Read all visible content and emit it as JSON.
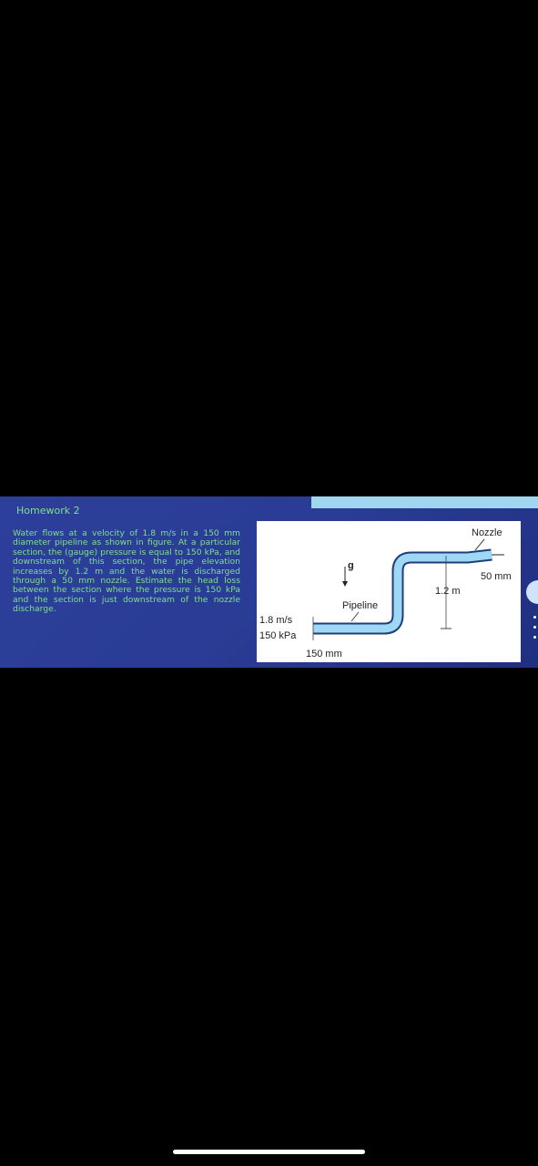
{
  "slide": {
    "title": "Homework 2",
    "text": "Water flows at a velocity of 1.8 m/s in a 150 mm diameter pipeline as shown in figure. At a particular section, the (gauge) pressure is equal to 150 kPa, and downstream of this section, the pipe elevation increases by 1.2 m and the water is discharged through a 50 mm nozzle. Estimate the head loss between the section where the pressure is 150 kPa and the section is just downstream of the nozzle discharge.",
    "figure": {
      "nozzle": "Nozzle",
      "nozzle_diameter": "50 mm",
      "elevation": "1.2 m",
      "gravity": "g",
      "pipeline": "Pipeline",
      "velocity": "1.8 m/s",
      "pressure": "150 kPa",
      "pipe_diameter": "150 mm"
    }
  }
}
